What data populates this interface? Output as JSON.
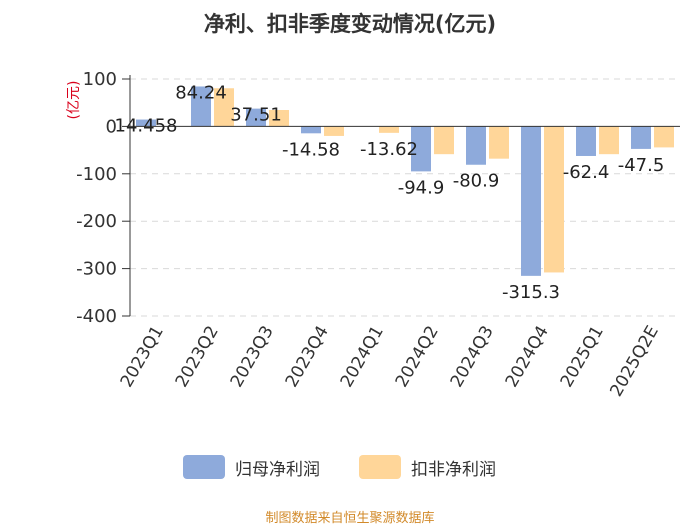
{
  "chart_data": {
    "type": "bar",
    "title": "净利、扣非季度变动情况(亿元)",
    "ylabel": "(亿元)",
    "xlabel": "",
    "ylim": [
      -400,
      100
    ],
    "yticks": [
      100,
      0,
      -100,
      -200,
      -300,
      -400
    ],
    "grid": true,
    "legend_position": "bottom-center",
    "categories": [
      "2023Q1",
      "2023Q2",
      "2023Q3",
      "2023Q4",
      "2024Q1",
      "2024Q2",
      "2024Q3",
      "2024Q4",
      "2025Q1",
      "2025Q2E"
    ],
    "series": [
      {
        "name": "归母净利润",
        "color": "#8eaadb",
        "values": [
          14.458,
          84.24,
          37.51,
          -14.58,
          0,
          -94.9,
          -80.9,
          -315.3,
          -62.4,
          -47.5
        ],
        "labels": [
          "14.458",
          "84.24",
          "37.51",
          "-14.58",
          "",
          "-94.9",
          "-80.9",
          "-315.3",
          "-62.4",
          "-47.5"
        ]
      },
      {
        "name": "扣非净利润",
        "color": "#ffd699",
        "values": [
          0,
          80.5,
          34.6,
          -20.1,
          -13.62,
          -58.6,
          -68.1,
          -308.1,
          -58.6,
          -44.3
        ],
        "labels": [
          "",
          "",
          "",
          "",
          "-13.62",
          "",
          "",
          "",
          "",
          ""
        ]
      }
    ]
  },
  "source_note": "制图数据来自恒生聚源数据库"
}
